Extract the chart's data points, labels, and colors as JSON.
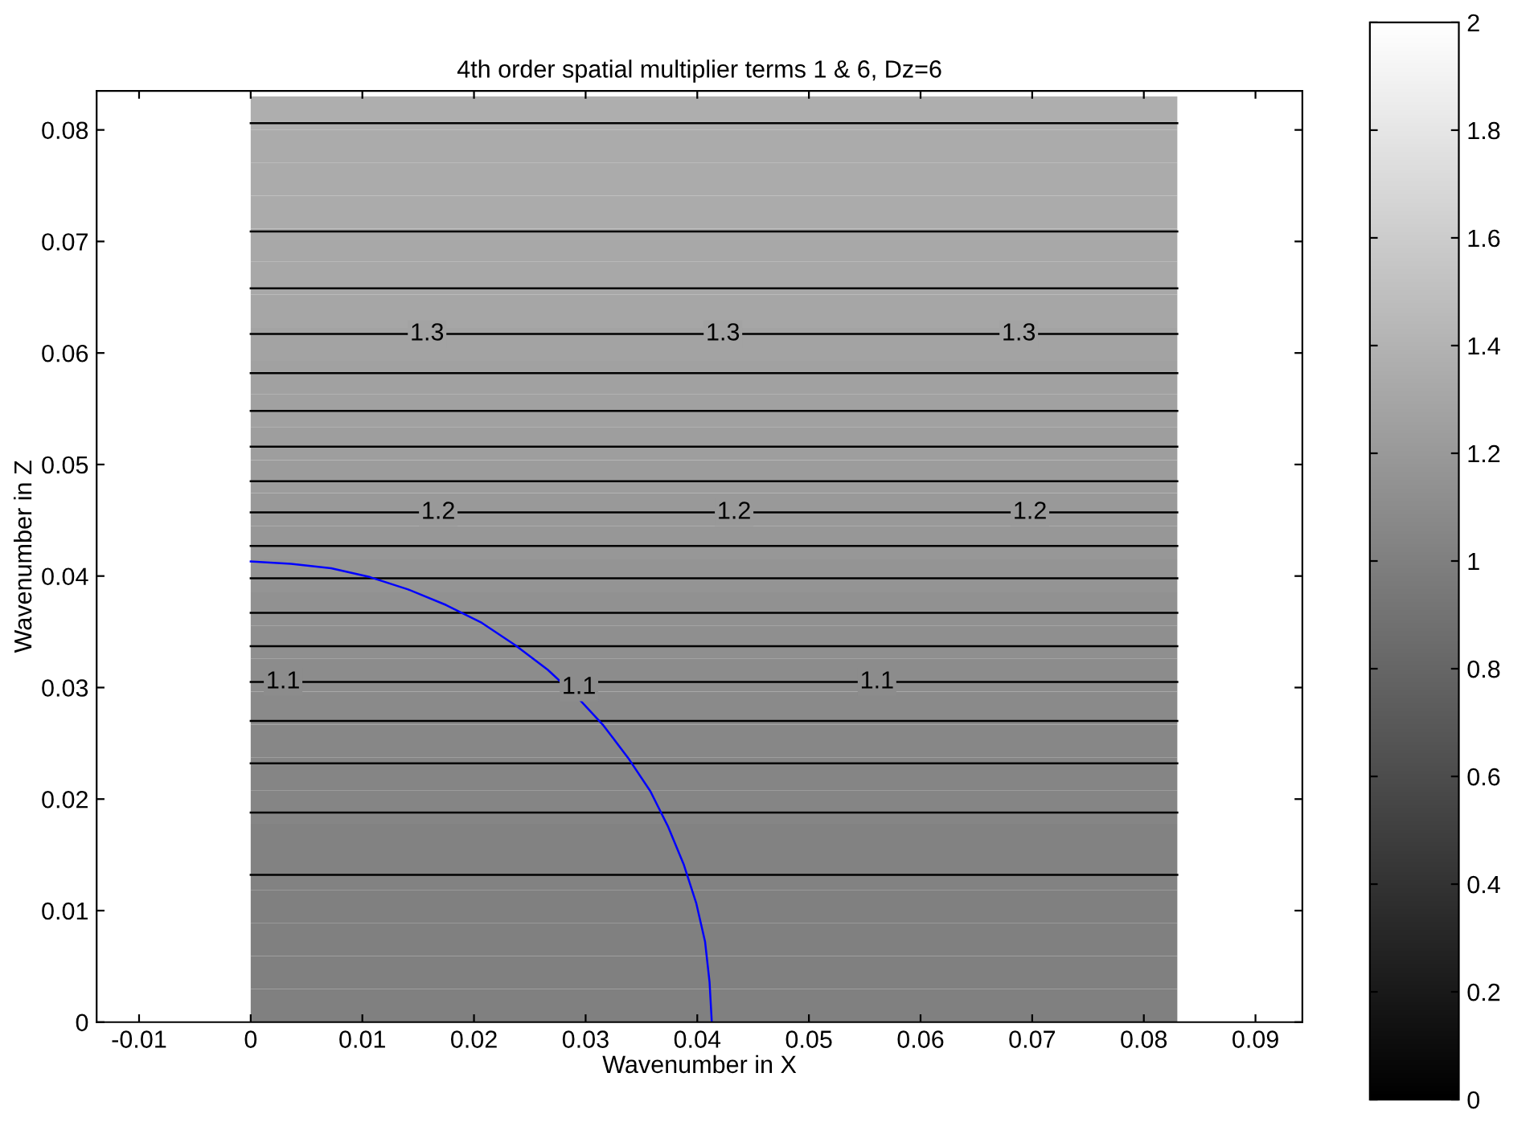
{
  "chart_data": {
    "type": "heatmap",
    "title": "4th order spatial multiplier terms 1 & 6, Dz=6",
    "xlabel": "Wavenumber in X",
    "ylabel": "Wavenumber in Z",
    "cells": [
      [
        1.36
      ],
      [
        1.34
      ],
      [
        1.34
      ],
      [
        1.34
      ],
      [
        1.32
      ],
      [
        1.32
      ],
      [
        1.3
      ],
      [
        1.28
      ],
      [
        1.26
      ],
      [
        1.26
      ],
      [
        1.24
      ],
      [
        1.22
      ],
      [
        1.2
      ],
      [
        1.18
      ],
      [
        1.16
      ],
      [
        1.14
      ],
      [
        1.12
      ],
      [
        1.1
      ],
      [
        1.08
      ],
      [
        1.06
      ],
      [
        1.04
      ],
      [
        1.04
      ],
      [
        1.02
      ],
      [
        1.02
      ],
      [
        1.0
      ],
      [
        1.0
      ],
      [
        1.0
      ],
      [
        1.0
      ]
    ],
    "clim": [
      0,
      2
    ],
    "cticks": [
      0,
      0.2,
      0.4,
      0.6,
      0.8,
      1,
      1.2,
      1.4,
      1.6,
      1.8,
      2
    ],
    "series": [
      {
        "type": "line",
        "color": "#000000",
        "x": [
          0,
          0.083
        ],
        "values": [
          0.0132,
          0.0132
        ]
      },
      {
        "type": "line",
        "color": "#000000",
        "x": [
          0,
          0.083
        ],
        "values": [
          0.0188,
          0.0188
        ]
      },
      {
        "type": "line",
        "color": "#000000",
        "x": [
          0,
          0.083
        ],
        "values": [
          0.0232,
          0.0232
        ]
      },
      {
        "type": "line",
        "color": "#000000",
        "x": [
          0,
          0.083
        ],
        "values": [
          0.027,
          0.027
        ]
      },
      {
        "type": "line",
        "color": "#000000",
        "x": [
          0,
          0.083
        ],
        "values": [
          0.0305,
          0.0305
        ]
      },
      {
        "type": "line",
        "color": "#000000",
        "x": [
          0,
          0.083
        ],
        "values": [
          0.0337,
          0.0337
        ]
      },
      {
        "type": "line",
        "color": "#000000",
        "x": [
          0,
          0.083
        ],
        "values": [
          0.0367,
          0.0367
        ]
      },
      {
        "type": "line",
        "color": "#000000",
        "x": [
          0,
          0.083
        ],
        "values": [
          0.0398,
          0.0398
        ]
      },
      {
        "type": "line",
        "color": "#000000",
        "x": [
          0,
          0.083
        ],
        "values": [
          0.0427,
          0.0427
        ]
      },
      {
        "type": "line",
        "color": "#000000",
        "x": [
          0,
          0.083
        ],
        "values": [
          0.0457,
          0.0457
        ]
      },
      {
        "type": "line",
        "color": "#000000",
        "x": [
          0,
          0.083
        ],
        "values": [
          0.0485,
          0.0485
        ]
      },
      {
        "type": "line",
        "color": "#000000",
        "x": [
          0,
          0.083
        ],
        "values": [
          0.0516,
          0.0516
        ]
      },
      {
        "type": "line",
        "color": "#000000",
        "x": [
          0,
          0.083
        ],
        "values": [
          0.0548,
          0.0548
        ]
      },
      {
        "type": "line",
        "color": "#000000",
        "x": [
          0,
          0.083
        ],
        "values": [
          0.0582,
          0.0582
        ]
      },
      {
        "type": "line",
        "color": "#000000",
        "x": [
          0,
          0.083
        ],
        "values": [
          0.0617,
          0.0617
        ]
      },
      {
        "type": "line",
        "color": "#000000",
        "x": [
          0,
          0.083
        ],
        "values": [
          0.0658,
          0.0658
        ]
      },
      {
        "type": "line",
        "color": "#000000",
        "x": [
          0,
          0.083
        ],
        "values": [
          0.0709,
          0.0709
        ]
      },
      {
        "type": "line",
        "color": "#000000",
        "x": [
          0,
          0.083
        ],
        "values": [
          0.0806,
          0.0806
        ]
      },
      {
        "type": "line",
        "color": "#0000ff",
        "x": [
          0.0413,
          0.0411,
          0.0407,
          0.0399,
          0.0388,
          0.0374,
          0.0358,
          0.0338,
          0.0316,
          0.0292,
          0.0266,
          0.0237,
          0.0207,
          0.0175,
          0.0141,
          0.0107,
          0.0072,
          0.0036,
          0
        ],
        "values": [
          0,
          0.0036,
          0.0072,
          0.0107,
          0.0141,
          0.0175,
          0.0207,
          0.0237,
          0.0266,
          0.0292,
          0.0316,
          0.0338,
          0.0358,
          0.0374,
          0.0388,
          0.0399,
          0.0407,
          0.0411,
          0.0413
        ]
      }
    ],
    "annotations": [
      {
        "text": "1.3",
        "x": 0.0158,
        "y": 0.0617
      },
      {
        "text": "1.3",
        "x": 0.0423,
        "y": 0.0617
      },
      {
        "text": "1.3",
        "x": 0.0688,
        "y": 0.0617
      },
      {
        "text": "1.2",
        "x": 0.0168,
        "y": 0.0457
      },
      {
        "text": "1.2",
        "x": 0.0433,
        "y": 0.0457
      },
      {
        "text": "1.2",
        "x": 0.0698,
        "y": 0.0457
      },
      {
        "text": "1.1",
        "x": 0.0029,
        "y": 0.0305
      },
      {
        "text": "1.1",
        "x": 0.0294,
        "y": 0.03
      },
      {
        "text": "1.1",
        "x": 0.0561,
        "y": 0.0305
      }
    ],
    "xlim": [
      -0.0138,
      0.0942
    ],
    "ylim": [
      0,
      0.0835
    ],
    "xticks": [
      -0.01,
      0,
      0.01,
      0.02,
      0.03,
      0.04,
      0.05,
      0.06,
      0.07,
      0.08,
      0.09
    ],
    "yticks": [
      0,
      0.01,
      0.02,
      0.03,
      0.04,
      0.05,
      0.06,
      0.07,
      0.08
    ],
    "grid": false
  }
}
